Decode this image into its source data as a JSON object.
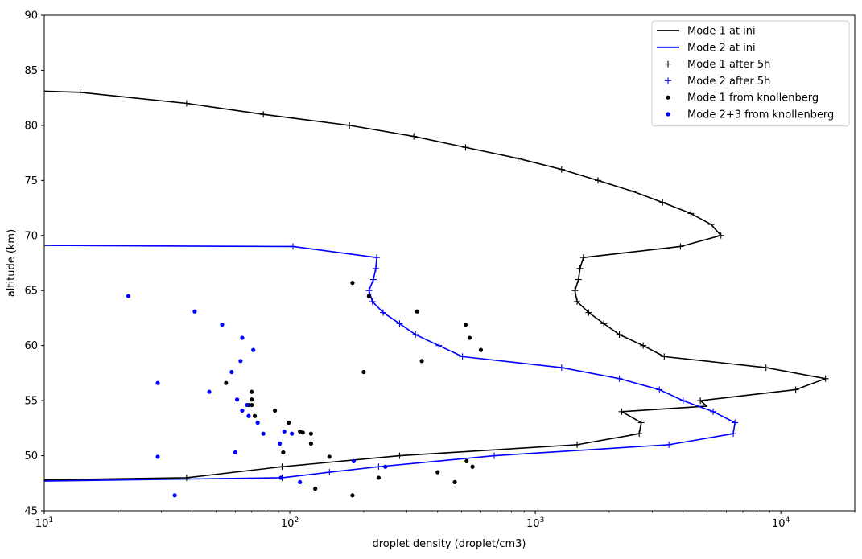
{
  "chart_data": {
    "type": "line",
    "title": "",
    "xlabel": "droplet density (droplet/cm3)",
    "ylabel": "altitude (km)",
    "xscale": "log",
    "xlim": [
      10,
      20000
    ],
    "ylim": [
      45,
      90
    ],
    "grid": false,
    "legend_position": "top-right",
    "x_ticks": [
      {
        "value": 10,
        "base": "10",
        "exp": "1"
      },
      {
        "value": 100,
        "base": "10",
        "exp": "2"
      },
      {
        "value": 1000,
        "base": "10",
        "exp": "3"
      },
      {
        "value": 10000,
        "base": "10",
        "exp": "4"
      }
    ],
    "y_ticks": [
      "45",
      "50",
      "55",
      "60",
      "65",
      "70",
      "75",
      "80",
      "85",
      "90"
    ],
    "series": [
      {
        "name": "Mode 1 at ini",
        "kind": "line",
        "color": "#000000",
        "points": [
          [
            10,
            83.1
          ],
          [
            14,
            83
          ],
          [
            38,
            82
          ],
          [
            78,
            81
          ],
          [
            175,
            80
          ],
          [
            320,
            79
          ],
          [
            520,
            78
          ],
          [
            850,
            77
          ],
          [
            1280,
            76
          ],
          [
            1800,
            75
          ],
          [
            2500,
            74
          ],
          [
            3300,
            73
          ],
          [
            4300,
            72
          ],
          [
            5200,
            71
          ],
          [
            5700,
            70
          ],
          [
            3900,
            69
          ],
          [
            1570,
            68
          ],
          [
            1520,
            67
          ],
          [
            1500,
            66
          ],
          [
            1450,
            65
          ],
          [
            1480,
            64
          ],
          [
            1650,
            63
          ],
          [
            1900,
            62
          ],
          [
            2200,
            61
          ],
          [
            2750,
            60
          ],
          [
            3350,
            59
          ],
          [
            8700,
            58
          ],
          [
            15200,
            57
          ],
          [
            11500,
            56
          ],
          [
            4700,
            55
          ],
          [
            5000,
            54.5
          ],
          [
            2250,
            54
          ],
          [
            2700,
            53
          ],
          [
            2650,
            52
          ],
          [
            1480,
            51
          ],
          [
            280,
            50
          ],
          [
            93,
            49
          ],
          [
            38,
            48
          ],
          [
            10,
            47.8
          ]
        ]
      },
      {
        "name": "Mode 2 at ini",
        "kind": "line",
        "color": "#0000ff",
        "points": [
          [
            10,
            69.1
          ],
          [
            93,
            69
          ],
          [
            103,
            69
          ],
          [
            226,
            68
          ],
          [
            224,
            67
          ],
          [
            219,
            66
          ],
          [
            210,
            65
          ],
          [
            217,
            64
          ],
          [
            240,
            63
          ],
          [
            280,
            62
          ],
          [
            325,
            61
          ],
          [
            405,
            60
          ],
          [
            505,
            59
          ],
          [
            1280,
            58
          ],
          [
            2200,
            57
          ],
          [
            3200,
            56
          ],
          [
            4000,
            55
          ],
          [
            5300,
            54
          ],
          [
            6500,
            53
          ],
          [
            6400,
            52
          ],
          [
            3500,
            51
          ],
          [
            680,
            50
          ],
          [
            230,
            49
          ],
          [
            145,
            48.5
          ],
          [
            93,
            48
          ],
          [
            10,
            47.7
          ]
        ]
      },
      {
        "name": "Mode 1 after 5h",
        "kind": "plus",
        "color": "#000000",
        "points": [
          [
            14,
            83
          ],
          [
            38,
            82
          ],
          [
            78,
            81
          ],
          [
            175,
            80
          ],
          [
            320,
            79
          ],
          [
            520,
            78
          ],
          [
            850,
            77
          ],
          [
            1280,
            76
          ],
          [
            1800,
            75
          ],
          [
            2500,
            74
          ],
          [
            3300,
            73
          ],
          [
            4300,
            72
          ],
          [
            5200,
            71
          ],
          [
            5700,
            70
          ],
          [
            3900,
            69
          ],
          [
            1570,
            68
          ],
          [
            1520,
            67
          ],
          [
            1500,
            66
          ],
          [
            1450,
            65
          ],
          [
            1480,
            64
          ],
          [
            1650,
            63
          ],
          [
            1900,
            62
          ],
          [
            2200,
            61
          ],
          [
            2750,
            60
          ],
          [
            3350,
            59
          ],
          [
            8700,
            58
          ],
          [
            15200,
            57
          ],
          [
            11500,
            56
          ],
          [
            4700,
            55
          ],
          [
            2250,
            54
          ],
          [
            2700,
            53
          ],
          [
            2650,
            52
          ],
          [
            1480,
            51
          ],
          [
            280,
            50
          ],
          [
            93,
            49
          ],
          [
            38,
            48
          ]
        ]
      },
      {
        "name": "Mode 2 after 5h",
        "kind": "plus",
        "color": "#0000ff",
        "points": [
          [
            103,
            69
          ],
          [
            226,
            68
          ],
          [
            224,
            67
          ],
          [
            219,
            66
          ],
          [
            210,
            65
          ],
          [
            217,
            64
          ],
          [
            240,
            63
          ],
          [
            280,
            62
          ],
          [
            325,
            61
          ],
          [
            405,
            60
          ],
          [
            505,
            59
          ],
          [
            1280,
            58
          ],
          [
            2200,
            57
          ],
          [
            3200,
            56
          ],
          [
            4000,
            55
          ],
          [
            5300,
            54
          ],
          [
            6500,
            53
          ],
          [
            6400,
            52
          ],
          [
            3500,
            51
          ],
          [
            680,
            50
          ],
          [
            230,
            49
          ],
          [
            145,
            48.5
          ],
          [
            93,
            48
          ]
        ]
      },
      {
        "name": "Mode 1 from knollenberg",
        "kind": "dot",
        "color": "#000000",
        "points": [
          [
            180,
            65.7
          ],
          [
            210,
            64.5
          ],
          [
            330,
            63.1
          ],
          [
            520,
            61.9
          ],
          [
            540,
            60.7
          ],
          [
            600,
            59.6
          ],
          [
            345,
            58.6
          ],
          [
            200,
            57.6
          ],
          [
            55,
            56.6
          ],
          [
            70,
            55.8
          ],
          [
            70,
            55.1
          ],
          [
            70,
            54.6
          ],
          [
            68,
            54.6
          ],
          [
            87,
            54.1
          ],
          [
            72,
            53.6
          ],
          [
            99,
            53.0
          ],
          [
            110,
            52.2
          ],
          [
            113,
            52.1
          ],
          [
            122,
            52.0
          ],
          [
            122,
            51.1
          ],
          [
            94,
            50.3
          ],
          [
            145,
            49.9
          ],
          [
            525,
            49.5
          ],
          [
            555,
            49.0
          ],
          [
            400,
            48.5
          ],
          [
            230,
            48.0
          ],
          [
            470,
            47.6
          ],
          [
            127,
            47.0
          ],
          [
            180,
            46.4
          ]
        ]
      },
      {
        "name": "Mode 2+3 from knollenberg",
        "kind": "dot",
        "color": "#0000ff",
        "points": [
          [
            22,
            64.5
          ],
          [
            41,
            63.1
          ],
          [
            53,
            61.9
          ],
          [
            64,
            60.7
          ],
          [
            71,
            59.6
          ],
          [
            63,
            58.6
          ],
          [
            58,
            57.6
          ],
          [
            29,
            56.6
          ],
          [
            47,
            55.8
          ],
          [
            61,
            55.1
          ],
          [
            67,
            54.6
          ],
          [
            64,
            54.1
          ],
          [
            68,
            53.6
          ],
          [
            74,
            53.0
          ],
          [
            95,
            52.2
          ],
          [
            102,
            52.0
          ],
          [
            78,
            52.0
          ],
          [
            91,
            51.1
          ],
          [
            60,
            50.3
          ],
          [
            29,
            49.9
          ],
          [
            182,
            49.5
          ],
          [
            245,
            49.0
          ],
          [
            92,
            48.0
          ],
          [
            110,
            47.6
          ],
          [
            34,
            46.4
          ]
        ]
      }
    ]
  }
}
